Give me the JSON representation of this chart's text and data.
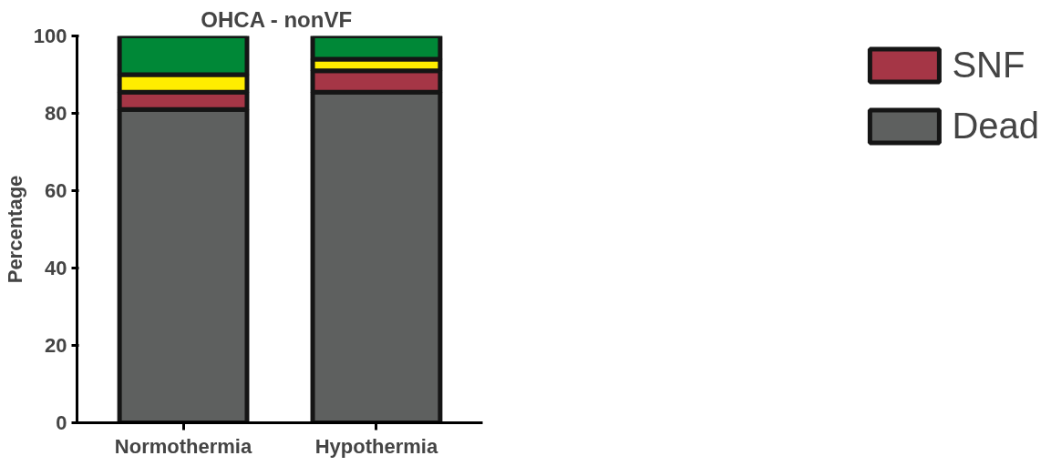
{
  "chart_data": {
    "type": "bar",
    "stacked": true,
    "title": "OHCA -  nonVF",
    "ylabel": "Percentage",
    "categories": [
      "Normothermia",
      "Hypothermia"
    ],
    "series": [
      {
        "name": "Dead",
        "color": "#5e605f",
        "values": [
          81,
          85.5
        ]
      },
      {
        "name": "SNF",
        "color": "#a53646",
        "values": [
          4.5,
          5.5
        ]
      },
      {
        "color": "#ffed00",
        "values": [
          4.5,
          3
        ]
      },
      {
        "color": "#008837",
        "values": [
          10,
          6
        ]
      }
    ],
    "ylim": [
      0,
      100
    ],
    "yticks": [
      0,
      20,
      40,
      60,
      80,
      100
    ],
    "legend": "right"
  }
}
